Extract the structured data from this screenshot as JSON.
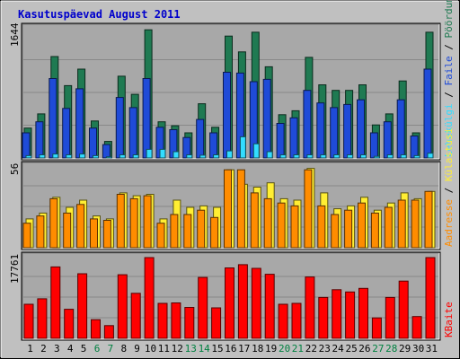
{
  "title": "Kasutuspäevad August 2011",
  "colors": {
    "page_bg": "#c0c0c0",
    "panel_bg": "#a8a8a8",
    "title": "#0000cc",
    "weekday": "#000000",
    "weekend": "#008040",
    "hits": "#1f7a52",
    "files": "#1f4bd8",
    "pages": "#33ddff",
    "visits": "#ffee33",
    "sites": "#ff8c00",
    "kbytes": "#ff0000"
  },
  "chart_data": [
    {
      "type": "bar",
      "panel": "top",
      "ylabel_value": "1644",
      "ylim": [
        0,
        1644
      ],
      "legend": [
        "Pöördumisi",
        "Faile",
        "Lehekülgi"
      ],
      "legend_colors": [
        "#1f7a52",
        "#1f4bd8",
        "#33ddff"
      ],
      "categories": [
        "1",
        "2",
        "3",
        "4",
        "5",
        "6",
        "7",
        "8",
        "9",
        "10",
        "11",
        "12",
        "13",
        "14",
        "15",
        "16",
        "17",
        "18",
        "19",
        "20",
        "21",
        "22",
        "23",
        "24",
        "25",
        "26",
        "27",
        "28",
        "29",
        "30",
        "31"
      ],
      "series": [
        {
          "name": "Pöördumisi",
          "values": [
            380,
            560,
            1290,
            920,
            1130,
            470,
            210,
            1040,
            810,
            1630,
            460,
            410,
            320,
            690,
            390,
            1550,
            1350,
            1600,
            1160,
            550,
            600,
            1280,
            930,
            860,
            860,
            930,
            420,
            560,
            980,
            320,
            1600
          ]
        },
        {
          "name": "Faile",
          "values": [
            320,
            460,
            1010,
            630,
            880,
            380,
            170,
            770,
            640,
            1010,
            390,
            360,
            260,
            490,
            320,
            1090,
            1080,
            970,
            1000,
            440,
            510,
            860,
            700,
            640,
            680,
            740,
            320,
            460,
            740,
            280,
            1130
          ]
        },
        {
          "name": "Lehekülgi",
          "values": [
            30,
            40,
            50,
            40,
            50,
            30,
            15,
            40,
            40,
            110,
            110,
            80,
            40,
            35,
            40,
            90,
            270,
            180,
            80,
            40,
            40,
            40,
            40,
            40,
            40,
            40,
            20,
            40,
            40,
            30,
            60
          ]
        }
      ]
    },
    {
      "type": "bar",
      "panel": "middle",
      "ylabel_value": "56",
      "ylim": [
        0,
        56
      ],
      "legend": [
        "Külastusi",
        "Aadresse"
      ],
      "legend_colors": [
        "#ffee33",
        "#ff8c00"
      ],
      "categories": [
        "1",
        "2",
        "3",
        "4",
        "5",
        "6",
        "7",
        "8",
        "9",
        "10",
        "11",
        "12",
        "13",
        "14",
        "15",
        "16",
        "17",
        "18",
        "19",
        "20",
        "21",
        "22",
        "23",
        "24",
        "25",
        "26",
        "27",
        "28",
        "29",
        "30",
        "31"
      ],
      "series": [
        {
          "name": "Külastusi",
          "values": [
            20,
            24,
            35,
            28,
            33,
            22,
            20,
            38,
            36,
            37,
            20,
            33,
            28,
            29,
            28,
            54,
            44,
            42,
            45,
            34,
            33,
            55,
            38,
            27,
            29,
            35,
            26,
            31,
            38,
            34,
            39
          ]
        },
        {
          "name": "Aadresse",
          "values": [
            17,
            22,
            34,
            24,
            30,
            20,
            19,
            37,
            34,
            36,
            17,
            23,
            23,
            26,
            21,
            54,
            54,
            38,
            34,
            31,
            29,
            54,
            29,
            23,
            26,
            31,
            24,
            28,
            33,
            33,
            39
          ]
        }
      ]
    },
    {
      "type": "bar",
      "panel": "bottom",
      "ylabel_value": "17761",
      "ylim": [
        0,
        17761
      ],
      "legend": [
        "KBaite"
      ],
      "legend_colors": [
        "#ff0000"
      ],
      "categories": [
        "1",
        "2",
        "3",
        "4",
        "5",
        "6",
        "7",
        "8",
        "9",
        "10",
        "11",
        "12",
        "13",
        "14",
        "15",
        "16",
        "17",
        "18",
        "19",
        "20",
        "21",
        "22",
        "23",
        "24",
        "25",
        "26",
        "27",
        "28",
        "29",
        "30",
        "31"
      ],
      "series": [
        {
          "name": "KBaite",
          "values": [
            7500,
            8700,
            15700,
            6400,
            14200,
            4100,
            2800,
            14000,
            9900,
            17761,
            7700,
            7800,
            6800,
            13400,
            6700,
            15500,
            16200,
            15400,
            14100,
            7500,
            7700,
            13500,
            9000,
            10700,
            10200,
            11000,
            4500,
            9000,
            12600,
            4800,
            17761
          ]
        }
      ]
    }
  ],
  "weekend_days": [
    "6",
    "7",
    "13",
    "14",
    "20",
    "21",
    "27",
    "28"
  ]
}
